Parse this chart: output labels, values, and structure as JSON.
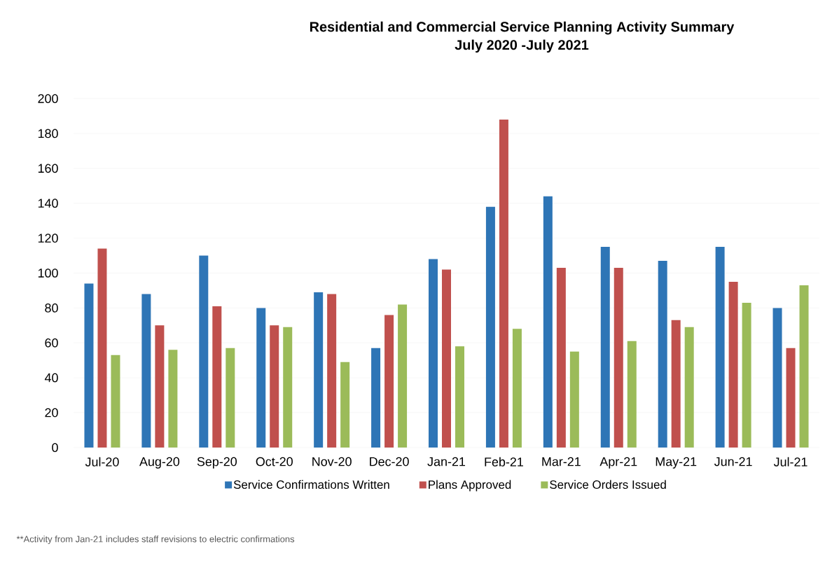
{
  "chart_data": {
    "type": "bar",
    "title": "Residential and Commercial Service Planning Activity Summary",
    "subtitle": "July 2020 -July 2021",
    "categories": [
      "Jul-20",
      "Aug-20",
      "Sep-20",
      "Oct-20",
      "Nov-20",
      "Dec-20",
      "Jan-21",
      "Feb-21",
      "Mar-21",
      "Apr-21",
      "May-21",
      "Jun-21",
      "Jul-21"
    ],
    "series": [
      {
        "name": "Service Confirmations Written",
        "color": "#2e75b6",
        "values": [
          94,
          88,
          110,
          80,
          89,
          57,
          108,
          138,
          144,
          115,
          107,
          115,
          80
        ]
      },
      {
        "name": "Plans Approved",
        "color": "#c0504d",
        "values": [
          114,
          70,
          81,
          70,
          88,
          76,
          102,
          188,
          103,
          103,
          73,
          95,
          57
        ]
      },
      {
        "name": "Service Orders Issued",
        "color": "#9bbb59",
        "values": [
          53,
          56,
          57,
          69,
          49,
          82,
          58,
          68,
          55,
          61,
          69,
          83,
          93
        ]
      }
    ],
    "ylim": [
      0,
      200
    ],
    "yticks": [
      0,
      20,
      40,
      60,
      80,
      100,
      120,
      140,
      160,
      180,
      200
    ],
    "grid": "y",
    "legend": "bottom",
    "annotations": [
      "**Activity from Jan-21 includes staff revisions to electric confirmations"
    ]
  }
}
